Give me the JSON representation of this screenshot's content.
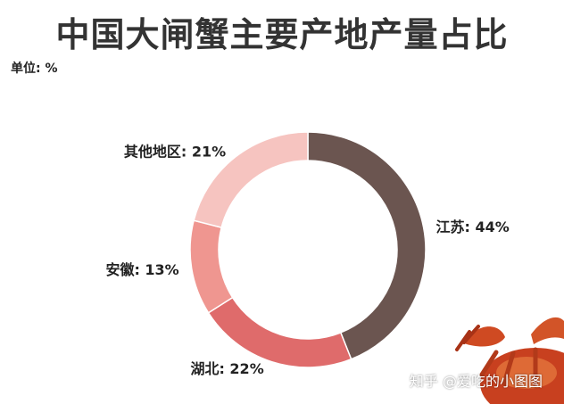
{
  "title": "中国大闸蟹主要产地产量占比",
  "unit_label": "单位: %",
  "watermark": "知乎 @爱吃的小图图",
  "chart_data": {
    "type": "pie",
    "donut": true,
    "start_angle_deg": 0,
    "direction": "clockwise",
    "slices": [
      {
        "name": "江苏",
        "label": "江苏: 44%",
        "value": 44,
        "color": "#6b5550"
      },
      {
        "name": "湖北",
        "label": "湖北: 22%",
        "value": 22,
        "color": "#df6b6b"
      },
      {
        "name": "安徽",
        "label": "安徽: 13%",
        "value": 13,
        "color": "#ef9690"
      },
      {
        "name": "其他地区",
        "label": "其他地区: 21%",
        "value": 21,
        "color": "#f6c4c0"
      }
    ]
  }
}
